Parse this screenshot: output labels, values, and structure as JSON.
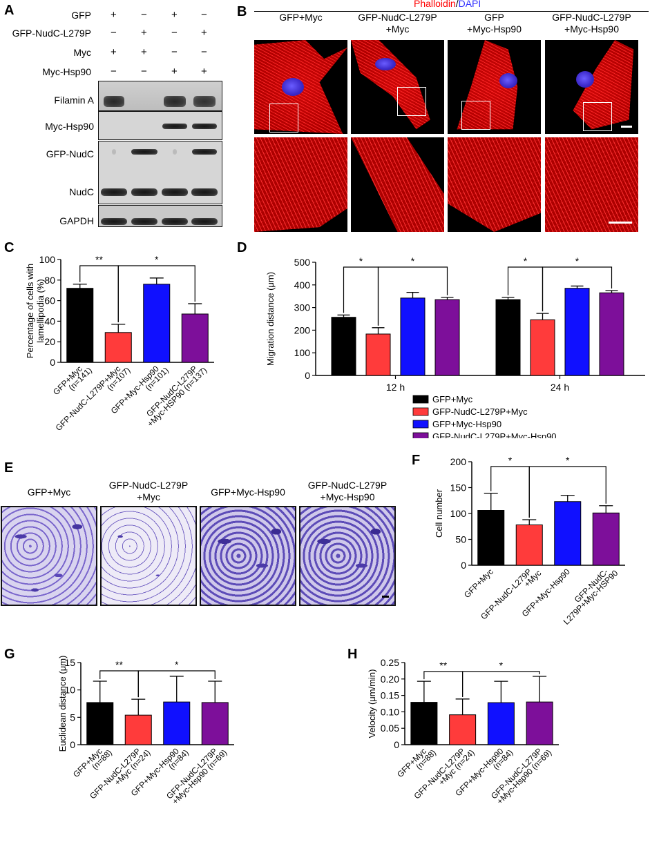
{
  "panels": {
    "A": "A",
    "B": "B",
    "C": "C",
    "D": "D",
    "E": "E",
    "F": "F",
    "G": "G",
    "H": "H"
  },
  "panelA": {
    "row_labels": [
      "GFP",
      "GFP-NudC-L279P",
      "Myc",
      "Myc-Hsp90"
    ],
    "signs": [
      [
        "+",
        "−",
        "+",
        "−"
      ],
      [
        "−",
        "+",
        "−",
        "+"
      ],
      [
        "+",
        "+",
        "−",
        "−"
      ],
      [
        "−",
        "−",
        "+",
        "+"
      ]
    ],
    "blot_labels": [
      "Filamin A",
      "Myc-Hsp90",
      "GFP-NudC",
      "NudC",
      "GAPDH"
    ]
  },
  "panelB": {
    "stain_red": "Phalloidin",
    "stain_sep": "/",
    "stain_blue": "DAPI",
    "stain_red_color": "#ff0000",
    "stain_blue_color": "#3333ff",
    "col_titles": [
      [
        "GFP+Myc",
        ""
      ],
      [
        "GFP-NudC-L279P",
        "+Myc"
      ],
      [
        "GFP",
        "+Myc-Hsp90"
      ],
      [
        "GFP-NudC-L279P",
        "+Myc-Hsp90"
      ]
    ]
  },
  "panelE": {
    "titles": [
      [
        "GFP+Myc",
        ""
      ],
      [
        "GFP-NudC-L279P",
        "+Myc"
      ],
      [
        "GFP+Myc-Hsp90",
        ""
      ],
      [
        "GFP-NudC-L279P",
        "+Myc-Hsp90"
      ]
    ]
  },
  "legendD": [
    {
      "label": "GFP+Myc",
      "color": "#000000"
    },
    {
      "label": "GFP-NudC-L279P+Myc",
      "color": "#ff3b3b"
    },
    {
      "label": "GFP+Myc-Hsp90",
      "color": "#1010ff"
    },
    {
      "label": "GFP-NudC-L279P+Myc-Hsp90",
      "color": "#7d0f9a"
    }
  ],
  "chart_data": [
    {
      "id": "C",
      "type": "bar",
      "ylabel": "Percentage of cells with lamellipodia (%)",
      "ylim": [
        0,
        100
      ],
      "yticks": [
        0,
        20,
        40,
        60,
        80,
        100
      ],
      "categories": [
        "GFP+Myc (n=141)",
        "GFP-NudC-L279P+Myc (n=107)",
        "GFP+Myc-Hsp90 (n=101)",
        "GFP-NudC-L279P +Myc-HSP90 (n=137)"
      ],
      "values": [
        72,
        29,
        76,
        47
      ],
      "errors": [
        4,
        8,
        6,
        10
      ],
      "colors": [
        "#000000",
        "#ff3b3b",
        "#1010ff",
        "#7d0f9a"
      ],
      "significance": [
        {
          "from": 0,
          "to": 1,
          "label": "**"
        },
        {
          "from": 1,
          "to": 3,
          "label": "*"
        }
      ]
    },
    {
      "id": "D",
      "type": "bar",
      "ylabel": "Migration distance (μm)",
      "ylim": [
        0,
        500
      ],
      "yticks": [
        0,
        100,
        200,
        300,
        400,
        500
      ],
      "groups": [
        "12 h",
        "24 h"
      ],
      "series": [
        {
          "name": "GFP+Myc",
          "values": [
            257,
            335
          ],
          "errors": [
            10,
            10
          ],
          "color": "#000000"
        },
        {
          "name": "GFP-NudC-L279P+Myc",
          "values": [
            183,
            246
          ],
          "errors": [
            28,
            28
          ],
          "color": "#ff3b3b"
        },
        {
          "name": "GFP+Myc-Hsp90",
          "values": [
            342,
            385
          ],
          "errors": [
            25,
            10
          ],
          "color": "#1010ff"
        },
        {
          "name": "GFP-NudC-L279P+Myc-Hsp90",
          "values": [
            335,
            365
          ],
          "errors": [
            10,
            10
          ],
          "color": "#7d0f9a"
        }
      ],
      "significance": [
        {
          "group": 0,
          "from": 0,
          "to": 1,
          "label": "*"
        },
        {
          "group": 0,
          "from": 1,
          "to": 3,
          "label": "*"
        },
        {
          "group": 1,
          "from": 0,
          "to": 1,
          "label": "*"
        },
        {
          "group": 1,
          "from": 1,
          "to": 3,
          "label": "*"
        }
      ]
    },
    {
      "id": "F",
      "type": "bar",
      "ylabel": "Cell number",
      "ylim": [
        0,
        200
      ],
      "yticks": [
        0,
        50,
        100,
        150,
        200
      ],
      "categories": [
        "GFP+Myc",
        "GFP-NudC-L279P +Myc",
        "GFP+Myc-Hsp90",
        "GFP-NudC- L279P+Myc-HSP90"
      ],
      "values": [
        106,
        78,
        123,
        101
      ],
      "errors": [
        33,
        10,
        12,
        14
      ],
      "colors": [
        "#000000",
        "#ff3b3b",
        "#1010ff",
        "#7d0f9a"
      ],
      "significance": [
        {
          "from": 0,
          "to": 1,
          "label": "*"
        },
        {
          "from": 1,
          "to": 3,
          "label": "*"
        }
      ]
    },
    {
      "id": "G",
      "type": "bar",
      "ylabel": "Euclidean distance (μm)",
      "ylim": [
        0,
        15
      ],
      "yticks": [
        0,
        5,
        10,
        15
      ],
      "categories": [
        "GFP+Myc (n=88)",
        "GFP-NudC-L279P +Myc (n=24)",
        "GFP+Myc-Hsp90 (n=84)",
        "GFP-NudC-L279P +Myc-Hsp90 (n=69)"
      ],
      "values": [
        7.7,
        5.4,
        7.8,
        7.7
      ],
      "errors": [
        3.9,
        2.9,
        4.7,
        3.9
      ],
      "colors": [
        "#000000",
        "#ff3b3b",
        "#1010ff",
        "#7d0f9a"
      ],
      "significance": [
        {
          "from": 0,
          "to": 1,
          "label": "**"
        },
        {
          "from": 1,
          "to": 3,
          "label": "*"
        }
      ]
    },
    {
      "id": "H",
      "type": "bar",
      "ylabel": "Velocity (μm/min)",
      "ylim": [
        0,
        0.25
      ],
      "yticks": [
        0,
        0.05,
        0.1,
        0.15,
        0.2,
        0.25
      ],
      "ytick_labels": [
        "0",
        "0.05",
        "0.10",
        "0.15",
        "0.20",
        "0.25"
      ],
      "categories": [
        "GFP+Myc (n=88)",
        "GFP-NudC-L279P +Myc (n=24)",
        "GFP+Myc-Hsp90 (n=84)",
        "GFP-NudC-L279P +Myc-Hsp90 (n=69)"
      ],
      "values": [
        0.129,
        0.091,
        0.128,
        0.13
      ],
      "errors": [
        0.064,
        0.048,
        0.065,
        0.078
      ],
      "colors": [
        "#000000",
        "#ff3b3b",
        "#1010ff",
        "#7d0f9a"
      ],
      "significance": [
        {
          "from": 0,
          "to": 1,
          "label": "**"
        },
        {
          "from": 1,
          "to": 3,
          "label": "*"
        }
      ]
    }
  ]
}
